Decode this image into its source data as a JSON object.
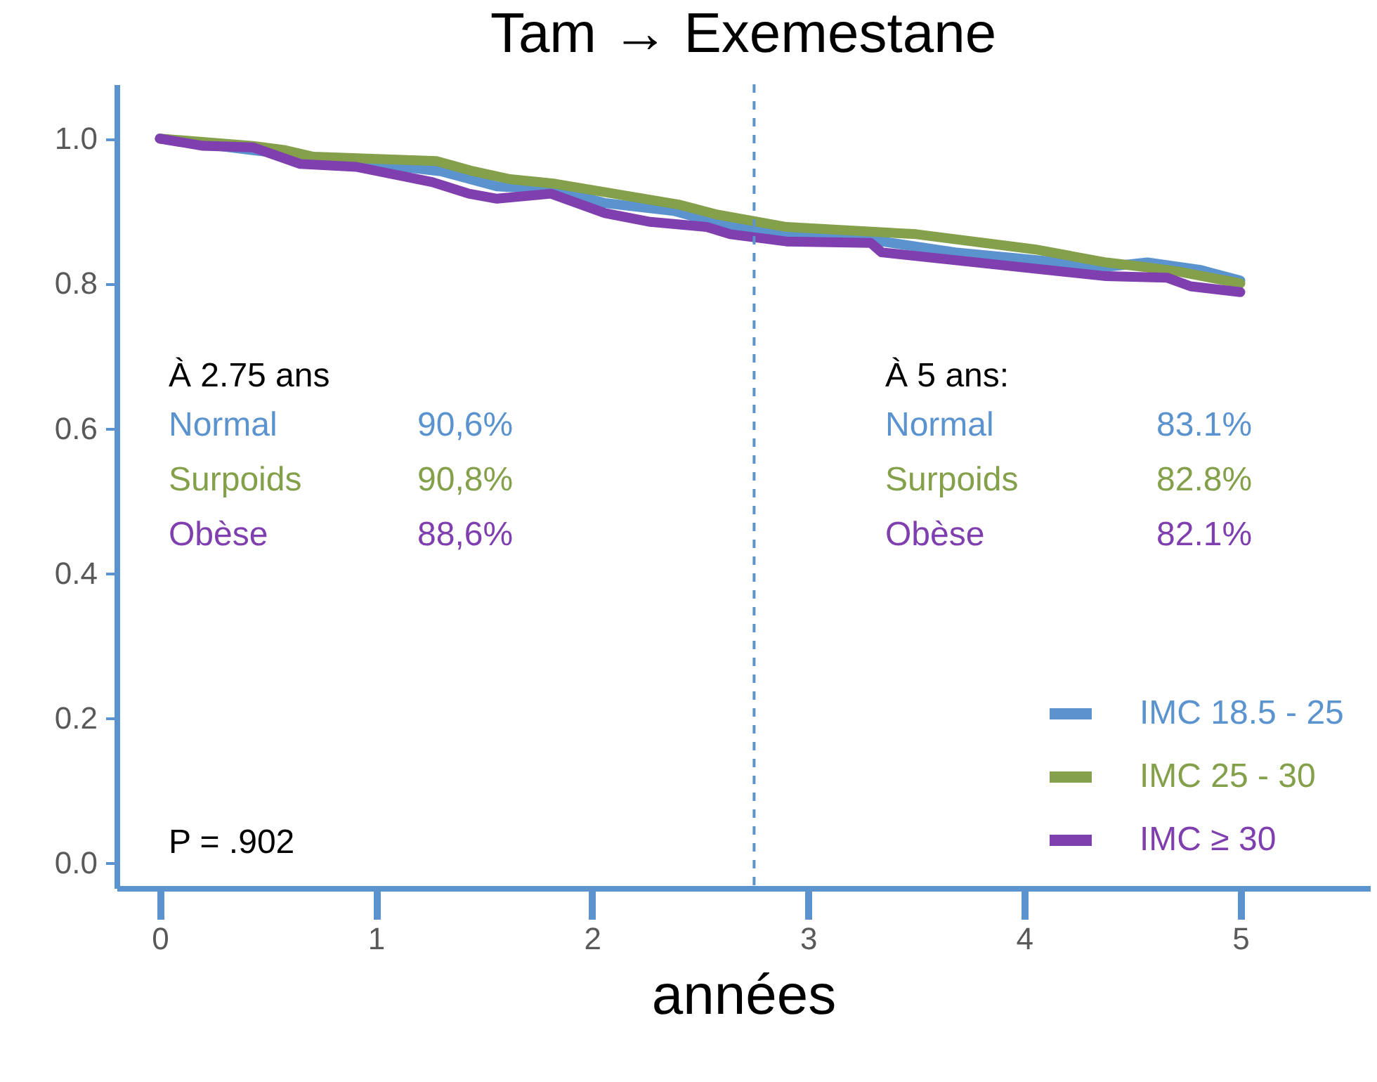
{
  "chart_data": {
    "type": "line",
    "title": "Tam → Exemestane",
    "xlabel": "années",
    "xlim": [
      -0.2,
      5.6
    ],
    "ylim": [
      -0.035,
      1.075
    ],
    "xticks": [
      0,
      1,
      2,
      3,
      4,
      5
    ],
    "yticks": [
      {
        "value": 0,
        "label": "0.0"
      },
      {
        "value": 0.2,
        "label": "0.2"
      },
      {
        "value": 0.4,
        "label": "0.4"
      },
      {
        "value": 0.6,
        "label": "0.6"
      },
      {
        "value": 0.8,
        "label": "0.8"
      },
      {
        "value": 1,
        "label": "1.0"
      }
    ],
    "grid": false,
    "legend": "bottom right",
    "line_style": "solid",
    "marker": "none",
    "ref_lines": [
      {
        "axis": "x",
        "value": 2.75,
        "color": "#5b93cf",
        "line_style": "dashed"
      }
    ],
    "annotations": [
      "À 2.75 ans",
      "Normal",
      "90,6%",
      "Surpoids",
      "90,8%",
      "Obèse",
      "88,6%",
      "À 5 ans:",
      "Normal",
      "83.1%",
      "Surpoids",
      "82.8%",
      "Obèse",
      "82.1%",
      "P = .902"
    ],
    "series": [
      {
        "name": "IMC 18.5 - 25",
        "color": "#5b93cf",
        "x": [
          0,
          0.43,
          1.3,
          1.56,
          1.82,
          2.06,
          2.38,
          2.56,
          2.9,
          3.34,
          3.68,
          4.38,
          4.57,
          4.81,
          5.0
        ],
        "values": [
          1.0,
          0.984,
          0.955,
          0.934,
          0.93,
          0.911,
          0.9,
          0.885,
          0.868,
          0.858,
          0.843,
          0.823,
          0.829,
          0.819,
          0.804
        ]
      },
      {
        "name": "IMC 25 - 30",
        "color": "#84a04a",
        "x": [
          0,
          0.43,
          0.58,
          0.71,
          1.28,
          1.45,
          1.62,
          1.82,
          2.4,
          2.58,
          2.9,
          3.5,
          4.05,
          4.38,
          4.55,
          4.72,
          5.0
        ],
        "values": [
          1.0,
          0.99,
          0.984,
          0.975,
          0.969,
          0.955,
          0.944,
          0.938,
          0.909,
          0.895,
          0.878,
          0.868,
          0.847,
          0.829,
          0.823,
          0.816,
          0.8
        ]
      },
      {
        "name": "IMC ≥ 30",
        "color": "#7f3fae",
        "x": [
          0,
          0.2,
          0.43,
          0.65,
          0.91,
          1.26,
          1.43,
          1.56,
          1.81,
          2.06,
          2.27,
          2.53,
          2.64,
          2.9,
          3.29,
          3.34,
          4.38,
          4.66,
          4.77,
          5.0
        ],
        "values": [
          1.0,
          0.99,
          0.988,
          0.965,
          0.961,
          0.94,
          0.924,
          0.917,
          0.924,
          0.897,
          0.885,
          0.878,
          0.868,
          0.858,
          0.856,
          0.843,
          0.81,
          0.808,
          0.796,
          0.788
        ]
      }
    ]
  }
}
